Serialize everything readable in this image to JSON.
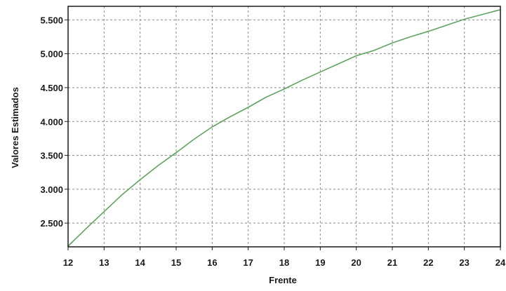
{
  "colors": {
    "line": "#5fa35f",
    "grid": "#8a8a8a",
    "frame": "#1a1a1a",
    "background": "#ffffff"
  },
  "chart_data": {
    "type": "line",
    "xlabel": "Frente",
    "ylabel": "Valores Estimados",
    "xlim": [
      12,
      24
    ],
    "ylim": [
      2150,
      5700
    ],
    "grid": true,
    "x_ticks": [
      12,
      13,
      14,
      15,
      16,
      17,
      18,
      19,
      20,
      21,
      22,
      23,
      24
    ],
    "x_tick_labels": [
      "12",
      "13",
      "14",
      "15",
      "16",
      "17",
      "18",
      "19",
      "20",
      "21",
      "22",
      "23",
      "24"
    ],
    "y_ticks": [
      2500,
      3000,
      3500,
      4000,
      4500,
      5000,
      5500
    ],
    "y_tick_labels": [
      "2.500",
      "3.000",
      "3.500",
      "4.000",
      "4.500",
      "5.000",
      "5.500"
    ],
    "series": [
      {
        "x": [
          12,
          12.5,
          13,
          13.5,
          14,
          14.5,
          15,
          15.5,
          16,
          16.5,
          17,
          17.5,
          18,
          18.5,
          19,
          19.5,
          20,
          20.5,
          21,
          21.5,
          22,
          22.5,
          23,
          23.5,
          24
        ],
        "values": [
          2160,
          2420,
          2670,
          2920,
          3140,
          3350,
          3540,
          3740,
          3920,
          4070,
          4210,
          4360,
          4480,
          4610,
          4730,
          4850,
          4970,
          5050,
          5160,
          5250,
          5330,
          5420,
          5510,
          5580,
          5650
        ]
      }
    ]
  }
}
